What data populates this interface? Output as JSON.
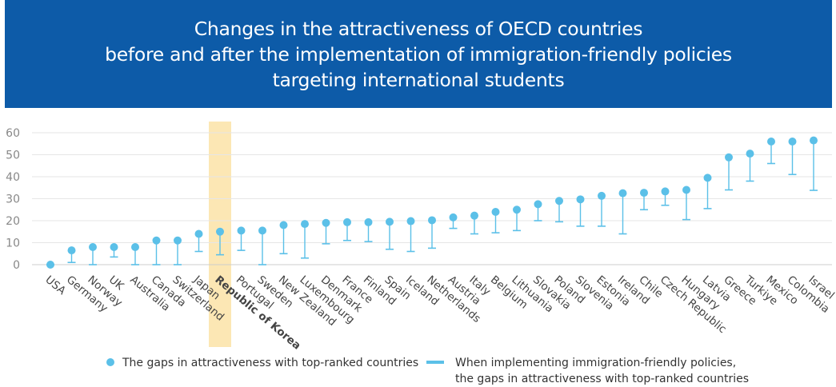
{
  "header": {
    "title_lines": [
      "Changes in the attractiveness of OECD countries",
      "before and after the implementation of immigration-friendly policies",
      "targeting international students"
    ]
  },
  "colors": {
    "header_bg": "#0d5ba8",
    "series": "#5bc0e8",
    "highlight": "#fbe3a7",
    "grid": "#e6e6e6",
    "axis_text": "#888888"
  },
  "legend": {
    "dot_label": "The gaps in attractiveness with top-ranked countries",
    "bar_label_line1": "When implementing immigration-friendly policies,",
    "bar_label_line2": "the gaps in attractiveness with top-ranked countries"
  },
  "chart_data": {
    "type": "scatter",
    "highlight_category": "Republic of Korea",
    "categories": [
      "USA",
      "Germany",
      "Norway",
      "UK",
      "Australia",
      "Canada",
      "Switzerland",
      "Japan",
      "Republic of Korea",
      "Portugal",
      "Sweden",
      "New Zealand",
      "Luxembourg",
      "Denmark",
      "France",
      "Finland",
      "Spain",
      "Iceland",
      "Netherlands",
      "Austria",
      "Italy",
      "Belgium",
      "Lithuania",
      "Slovakia",
      "Poland",
      "Slovenia",
      "Estonia",
      "Ireland",
      "Chile",
      "Czech Republic",
      "Hungary",
      "Latvia",
      "Greece",
      "Turkiye",
      "Mexico",
      "Colombia",
      "Israel"
    ],
    "series": [
      {
        "name": "The gaps in attractiveness with top-ranked countries",
        "values": [
          0,
          6.5,
          8,
          8,
          8,
          11,
          11,
          14,
          15,
          15.5,
          15.5,
          18,
          18.5,
          19,
          19.3,
          19.3,
          19.5,
          19.8,
          20.2,
          21.5,
          22.3,
          24,
          25,
          27.5,
          29,
          29.7,
          31.3,
          32.5,
          32.7,
          33.3,
          34,
          39.5,
          48.8,
          50.5,
          56,
          56,
          56.5
        ]
      },
      {
        "name": "When implementing immigration-friendly policies, the gaps in attractiveness with top-ranked countries",
        "values": [
          0,
          1,
          0,
          3.5,
          0,
          0,
          0,
          6,
          4.5,
          6.5,
          0,
          5,
          3,
          9.5,
          11,
          10.5,
          7,
          6,
          7.5,
          16.5,
          14,
          14.5,
          15.5,
          20,
          19.5,
          17.5,
          17.5,
          14,
          25,
          27,
          20.5,
          25.5,
          34,
          38,
          46,
          41,
          33.8
        ]
      }
    ],
    "ylim": [
      0,
      60
    ],
    "yticks": [
      "0",
      "10",
      "20",
      "30",
      "40",
      "50",
      "60"
    ],
    "grid": true,
    "legend_position": "bottom"
  }
}
